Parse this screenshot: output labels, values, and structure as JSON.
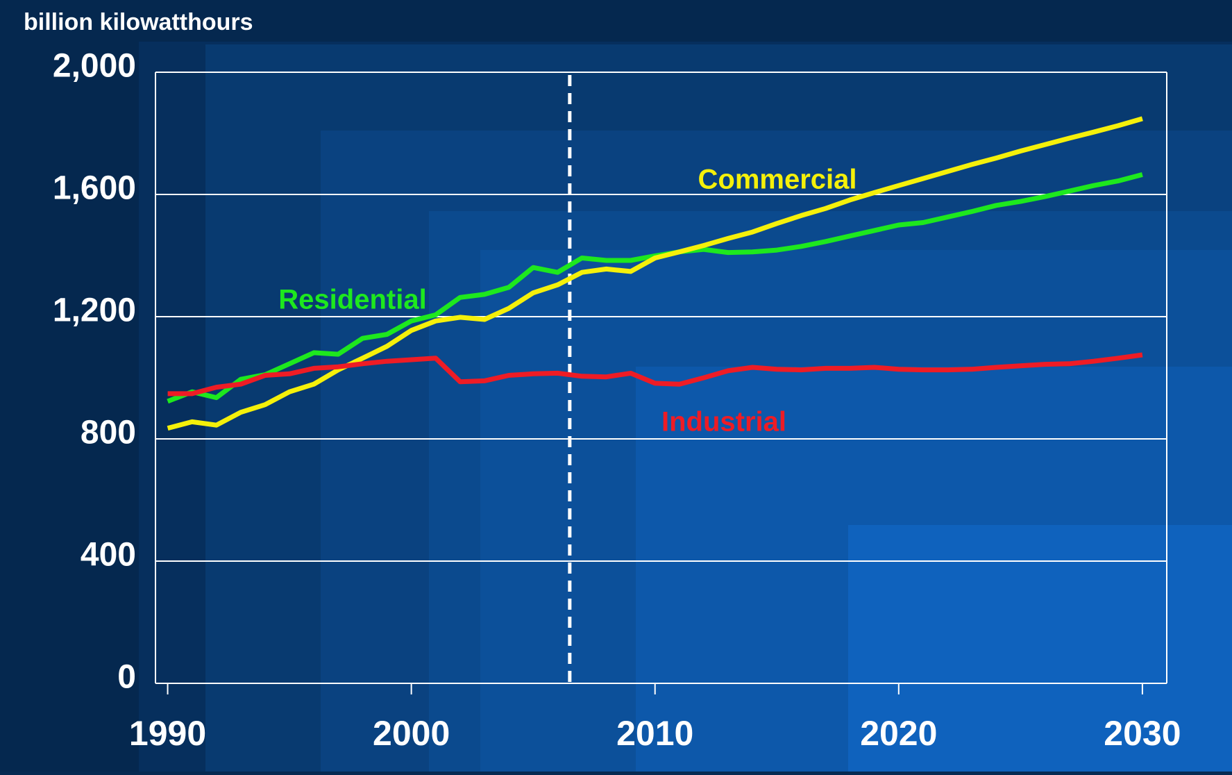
{
  "chart_data": {
    "type": "line",
    "y_axis_label": "billion kilowatthours",
    "x": [
      1990,
      1991,
      1992,
      1993,
      1994,
      1995,
      1996,
      1997,
      1998,
      1999,
      2000,
      2001,
      2002,
      2003,
      2004,
      2005,
      2006,
      2007,
      2008,
      2009,
      2010,
      2011,
      2012,
      2013,
      2014,
      2015,
      2016,
      2017,
      2018,
      2019,
      2020,
      2021,
      2022,
      2023,
      2024,
      2025,
      2026,
      2027,
      2028,
      2029,
      2030
    ],
    "series": [
      {
        "name": "Residential",
        "color": "#1ee81e",
        "values": [
          923,
          954,
          935,
          995,
          1010,
          1046,
          1082,
          1077,
          1129,
          1142,
          1186,
          1206,
          1263,
          1273,
          1296,
          1361,
          1345,
          1392,
          1384,
          1384,
          1399,
          1412,
          1420,
          1410,
          1412,
          1418,
          1430,
          1446,
          1464,
          1482,
          1500,
          1508,
          1526,
          1544,
          1564,
          1577,
          1593,
          1611,
          1629,
          1644,
          1665
        ]
      },
      {
        "name": "Commercial",
        "color": "#f5f00a",
        "values": [
          835,
          856,
          845,
          887,
          912,
          954,
          979,
          1026,
          1064,
          1103,
          1155,
          1186,
          1198,
          1191,
          1227,
          1278,
          1304,
          1345,
          1356,
          1348,
          1392,
          1412,
          1433,
          1456,
          1477,
          1505,
          1531,
          1554,
          1582,
          1606,
          1629,
          1652,
          1675,
          1698,
          1719,
          1742,
          1763,
          1784,
          1804,
          1825,
          1848
        ]
      },
      {
        "name": "Industrial",
        "color": "#ee1c25",
        "values": [
          948,
          948,
          969,
          979,
          1008,
          1013,
          1031,
          1036,
          1046,
          1054,
          1059,
          1064,
          987,
          990,
          1008,
          1013,
          1015,
          1005,
          1003,
          1015,
          982,
          979,
          1000,
          1023,
          1034,
          1028,
          1026,
          1031,
          1031,
          1034,
          1028,
          1026,
          1026,
          1028,
          1034,
          1039,
          1044,
          1046,
          1054,
          1064,
          1075
        ]
      }
    ],
    "xlim": [
      1989.5,
      2031
    ],
    "xticks": [
      1990,
      2000,
      2010,
      2020,
      2030
    ],
    "ylim": [
      0,
      2000
    ],
    "yticks": [
      0,
      400,
      800,
      {
        "value": 1200,
        "label": "1,200"
      },
      {
        "value": 1600,
        "label": "1,600"
      },
      {
        "value": 2000,
        "label": "2,000"
      }
    ],
    "grid": true,
    "divider_x": 2006.5
  }
}
